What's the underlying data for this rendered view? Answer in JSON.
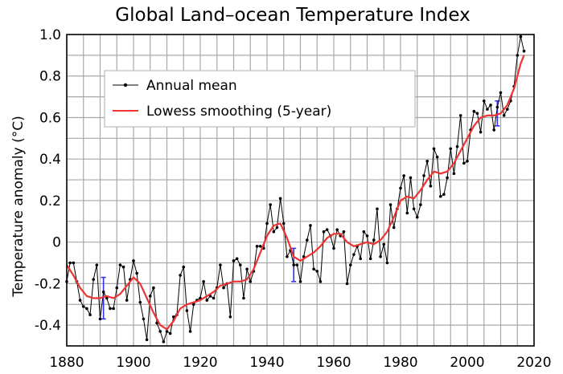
{
  "chart_data": {
    "type": "line",
    "title": "Global Land–ocean Temperature Index",
    "xlabel": "",
    "ylabel": "Temperature anomaly (°C)",
    "xlim": [
      1880,
      2020
    ],
    "ylim": [
      -0.5,
      1.0
    ],
    "x_ticks": [
      1880,
      1900,
      1920,
      1940,
      1960,
      1980,
      2000,
      2020
    ],
    "x_tick_labels": [
      "1880",
      "1900",
      "1920",
      "1940",
      "1960",
      "1980",
      "2000",
      "2020"
    ],
    "y_ticks": [
      -0.4,
      -0.2,
      0,
      0.2,
      0.4,
      0.6,
      0.8,
      1.0
    ],
    "y_tick_labels": [
      "-0.4",
      "-0.2",
      "0",
      "0.2",
      "0.4",
      "0.6",
      "0.8",
      "1.0"
    ],
    "grid": true,
    "legend_position": "upper-left",
    "series": [
      {
        "name": "Annual mean",
        "color": "#000000",
        "marker": "dot",
        "x": [
          1880,
          1881,
          1882,
          1883,
          1884,
          1885,
          1886,
          1887,
          1888,
          1889,
          1890,
          1891,
          1892,
          1893,
          1894,
          1895,
          1896,
          1897,
          1898,
          1899,
          1900,
          1901,
          1902,
          1903,
          1904,
          1905,
          1906,
          1907,
          1908,
          1909,
          1910,
          1911,
          1912,
          1913,
          1914,
          1915,
          1916,
          1917,
          1918,
          1919,
          1920,
          1921,
          1922,
          1923,
          1924,
          1925,
          1926,
          1927,
          1928,
          1929,
          1930,
          1931,
          1932,
          1933,
          1934,
          1935,
          1936,
          1937,
          1938,
          1939,
          1940,
          1941,
          1942,
          1943,
          1944,
          1945,
          1946,
          1947,
          1948,
          1949,
          1950,
          1951,
          1952,
          1953,
          1954,
          1955,
          1956,
          1957,
          1958,
          1959,
          1960,
          1961,
          1962,
          1963,
          1964,
          1965,
          1966,
          1967,
          1968,
          1969,
          1970,
          1971,
          1972,
          1973,
          1974,
          1975,
          1976,
          1977,
          1978,
          1979,
          1980,
          1981,
          1982,
          1983,
          1984,
          1985,
          1986,
          1987,
          1988,
          1989,
          1990,
          1991,
          1992,
          1993,
          1994,
          1995,
          1996,
          1997,
          1998,
          1999,
          2000,
          2001,
          2002,
          2003,
          2004,
          2005,
          2006,
          2007,
          2008,
          2009,
          2010,
          2011,
          2012,
          2013,
          2014,
          2015,
          2016,
          2017
        ],
        "values": [
          -0.19,
          -0.1,
          -0.1,
          -0.19,
          -0.28,
          -0.31,
          -0.32,
          -0.35,
          -0.18,
          -0.11,
          -0.37,
          -0.24,
          -0.27,
          -0.32,
          -0.32,
          -0.22,
          -0.11,
          -0.12,
          -0.28,
          -0.18,
          -0.09,
          -0.15,
          -0.29,
          -0.37,
          -0.47,
          -0.26,
          -0.22,
          -0.39,
          -0.43,
          -0.48,
          -0.43,
          -0.44,
          -0.36,
          -0.35,
          -0.16,
          -0.12,
          -0.33,
          -0.43,
          -0.3,
          -0.28,
          -0.27,
          -0.19,
          -0.28,
          -0.26,
          -0.27,
          -0.22,
          -0.11,
          -0.22,
          -0.2,
          -0.36,
          -0.09,
          -0.08,
          -0.11,
          -0.27,
          -0.13,
          -0.19,
          -0.14,
          -0.02,
          -0.02,
          -0.03,
          0.09,
          0.18,
          0.05,
          0.07,
          0.21,
          0.09,
          -0.07,
          -0.04,
          -0.11,
          -0.11,
          -0.19,
          -0.07,
          0.01,
          0.08,
          -0.13,
          -0.14,
          -0.19,
          0.05,
          0.06,
          0.03,
          -0.03,
          0.06,
          0.03,
          0.05,
          -0.2,
          -0.11,
          -0.06,
          -0.02,
          -0.08,
          0.05,
          0.03,
          -0.08,
          0.01,
          0.16,
          -0.07,
          -0.01,
          -0.1,
          0.18,
          0.07,
          0.16,
          0.26,
          0.32,
          0.14,
          0.31,
          0.16,
          0.12,
          0.18,
          0.32,
          0.39,
          0.27,
          0.45,
          0.41,
          0.22,
          0.23,
          0.31,
          0.45,
          0.33,
          0.46,
          0.61,
          0.38,
          0.39,
          0.54,
          0.63,
          0.62,
          0.53,
          0.68,
          0.64,
          0.66,
          0.54,
          0.65,
          0.72,
          0.61,
          0.64,
          0.68,
          0.75,
          0.9,
          0.99,
          0.92
        ]
      },
      {
        "name": "Lowess smoothing (5-year)",
        "color": "#ee3333",
        "x": [
          1880,
          1882,
          1884,
          1886,
          1888,
          1890,
          1892,
          1894,
          1896,
          1898,
          1900,
          1902,
          1904,
          1906,
          1908,
          1910,
          1912,
          1914,
          1916,
          1918,
          1920,
          1922,
          1924,
          1926,
          1928,
          1930,
          1932,
          1934,
          1936,
          1938,
          1940,
          1942,
          1944,
          1946,
          1948,
          1950,
          1952,
          1954,
          1956,
          1958,
          1960,
          1962,
          1964,
          1966,
          1968,
          1970,
          1972,
          1974,
          1976,
          1978,
          1980,
          1982,
          1984,
          1986,
          1988,
          1990,
          1992,
          1994,
          1996,
          1998,
          2000,
          2002,
          2004,
          2006,
          2008,
          2010,
          2012,
          2014,
          2016,
          2017
        ],
        "values": [
          -0.11,
          -0.16,
          -0.22,
          -0.26,
          -0.27,
          -0.27,
          -0.26,
          -0.27,
          -0.25,
          -0.21,
          -0.17,
          -0.2,
          -0.27,
          -0.34,
          -0.4,
          -0.42,
          -0.38,
          -0.32,
          -0.3,
          -0.29,
          -0.28,
          -0.26,
          -0.24,
          -0.21,
          -0.2,
          -0.19,
          -0.19,
          -0.18,
          -0.13,
          -0.05,
          0.03,
          0.08,
          0.09,
          0.02,
          -0.07,
          -0.09,
          -0.07,
          -0.05,
          -0.02,
          0.02,
          0.04,
          0.04,
          0.0,
          -0.02,
          -0.01,
          0.0,
          -0.01,
          0.01,
          0.05,
          0.12,
          0.2,
          0.22,
          0.21,
          0.25,
          0.3,
          0.34,
          0.33,
          0.34,
          0.38,
          0.44,
          0.5,
          0.56,
          0.6,
          0.61,
          0.61,
          0.62,
          0.66,
          0.74,
          0.86,
          0.9
        ]
      }
    ],
    "error_bars": [
      {
        "x": 1891,
        "low": -0.37,
        "high": -0.17
      },
      {
        "x": 1948,
        "low": -0.19,
        "high": -0.03
      },
      {
        "x": 2009,
        "low": 0.56,
        "high": 0.68
      }
    ],
    "error_bar_color": "#3333ee"
  }
}
